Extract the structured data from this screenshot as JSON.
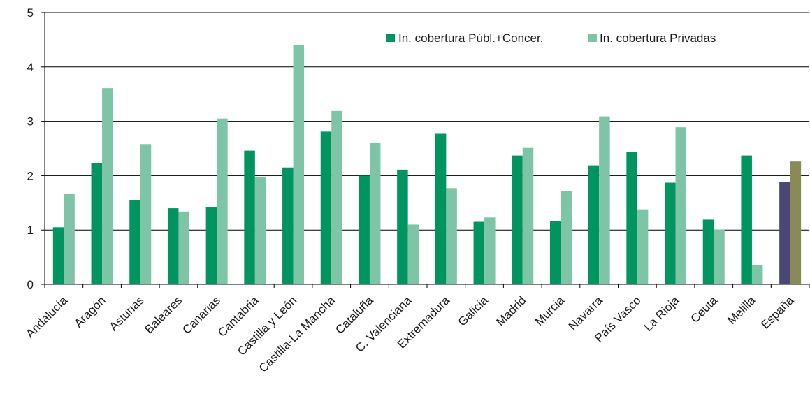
{
  "chart_data": {
    "type": "bar",
    "categories": [
      "Andalucía",
      "Aragón",
      "Asturias",
      "Baleares",
      "Canarias",
      "Cantabria",
      "Castilla y León",
      "Castilla-La Mancha",
      "Cataluña",
      "C. Valenciana",
      "Extremadura",
      "Galicia",
      "Madrid",
      "Murcia",
      "Navarra",
      "País Vasco",
      "La Rioja",
      "Ceuta",
      "Melilla",
      "España"
    ],
    "series": [
      {
        "name": "In. cobertura Públ.+Concer.",
        "color": "#009560",
        "values": [
          1.05,
          2.23,
          1.55,
          1.4,
          1.42,
          2.46,
          2.15,
          2.81,
          2.0,
          2.11,
          2.77,
          1.15,
          2.37,
          1.16,
          2.19,
          2.43,
          1.87,
          1.19,
          2.37,
          1.88
        ]
      },
      {
        "name": "In. cobertura Privadas",
        "color": "#7ec4a6",
        "values": [
          1.66,
          3.61,
          2.58,
          1.34,
          3.05,
          1.98,
          4.4,
          3.19,
          2.61,
          1.1,
          1.77,
          1.23,
          2.51,
          1.72,
          3.09,
          1.38,
          2.89,
          1.01,
          0.36,
          2.26
        ]
      }
    ],
    "highlight": {
      "category": "España",
      "colors": [
        "#4b4775",
        "#8a8a58"
      ]
    },
    "yticks": [
      0,
      1,
      2,
      3,
      4,
      5
    ],
    "ylim": [
      0,
      5
    ],
    "grid": true,
    "legend_position": "top-right",
    "title": "",
    "xlabel": "",
    "ylabel": ""
  }
}
